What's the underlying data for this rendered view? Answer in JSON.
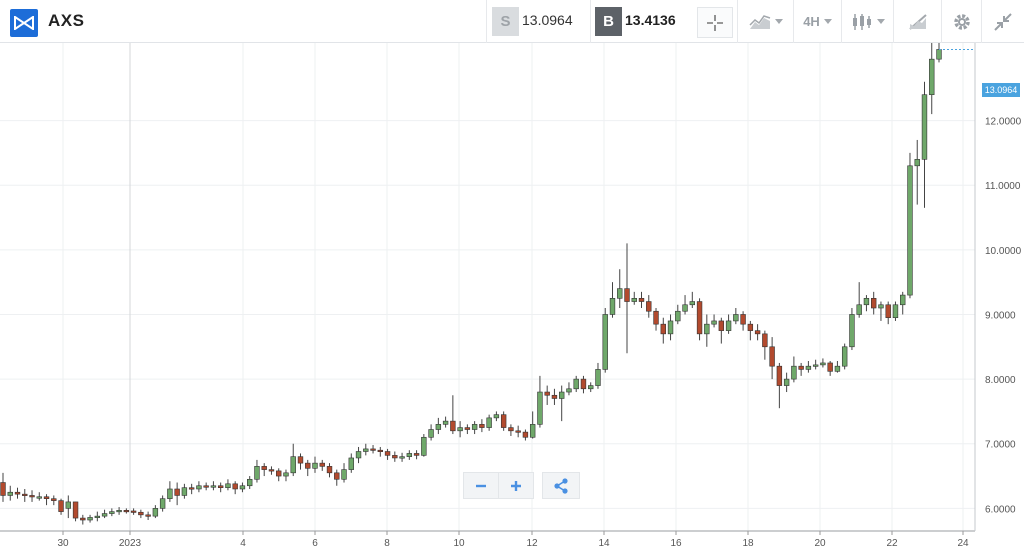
{
  "header": {
    "symbol": "AXS",
    "sell_label": "S",
    "sell_price": "13.0964",
    "buy_label": "B",
    "buy_price": "13.4136",
    "timeframe": "4H"
  },
  "icons": {
    "logo": "bowtie-logo-icon",
    "crosshair": "crosshair-icon",
    "chart_style": "mountain-chart-icon",
    "candles": "candlestick-icon",
    "draw": "drawing-tools-icon",
    "settings": "gear-icon",
    "collapse": "collapse-icon",
    "zoom_out": "minus-icon",
    "zoom_in": "plus-icon",
    "share": "share-icon"
  },
  "colors": {
    "up": "#6fa86a",
    "down": "#b24a2e",
    "price_tag": "#4aa3df",
    "logo": "#1d6dd8"
  },
  "chart_data": {
    "type": "candlestick",
    "current_price_label": "13.0964",
    "ylim": [
      5.65,
      13.2
    ],
    "y_ticks": [
      "6.0000",
      "7.0000",
      "8.0000",
      "9.0000",
      "10.0000",
      "11.0000",
      "12.0000"
    ],
    "x_ticks": [
      "30",
      "2023",
      "4",
      "6",
      "8",
      "10",
      "12",
      "14",
      "16",
      "18",
      "20",
      "22",
      "24"
    ],
    "candles": [
      [
        6.4,
        6.2,
        6.55,
        6.1
      ],
      [
        6.2,
        6.25,
        6.35,
        6.12
      ],
      [
        6.25,
        6.22,
        6.32,
        6.15
      ],
      [
        6.22,
        6.2,
        6.3,
        6.1
      ],
      [
        6.2,
        6.18,
        6.28,
        6.1
      ],
      [
        6.18,
        6.18,
        6.25,
        6.12
      ],
      [
        6.18,
        6.15,
        6.22,
        6.05
      ],
      [
        6.15,
        6.12,
        6.2,
        6.05
      ],
      [
        6.12,
        5.95,
        6.15,
        5.9
      ],
      [
        6.0,
        6.1,
        6.2,
        5.85
      ],
      [
        6.1,
        5.85,
        6.1,
        5.8
      ],
      [
        5.85,
        5.82,
        5.9,
        5.75
      ],
      [
        5.82,
        5.86,
        5.9,
        5.78
      ],
      [
        5.86,
        5.88,
        5.95,
        5.8
      ],
      [
        5.88,
        5.92,
        5.98,
        5.85
      ],
      [
        5.92,
        5.95,
        6.0,
        5.88
      ],
      [
        5.95,
        5.97,
        6.02,
        5.9
      ],
      [
        5.97,
        5.96,
        6.0,
        5.92
      ],
      [
        5.96,
        5.94,
        6.0,
        5.9
      ],
      [
        5.94,
        5.9,
        5.98,
        5.85
      ],
      [
        5.9,
        5.88,
        5.95,
        5.82
      ],
      [
        5.88,
        6.0,
        6.05,
        5.85
      ],
      [
        6.0,
        6.15,
        6.2,
        5.95
      ],
      [
        6.15,
        6.3,
        6.42,
        6.1
      ],
      [
        6.3,
        6.2,
        6.4,
        6.05
      ],
      [
        6.2,
        6.32,
        6.38,
        6.15
      ],
      [
        6.32,
        6.3,
        6.38,
        6.22
      ],
      [
        6.3,
        6.35,
        6.42,
        6.25
      ],
      [
        6.35,
        6.33,
        6.4,
        6.28
      ],
      [
        6.33,
        6.35,
        6.42,
        6.28
      ],
      [
        6.35,
        6.32,
        6.4,
        6.25
      ],
      [
        6.32,
        6.38,
        6.45,
        6.28
      ],
      [
        6.38,
        6.3,
        6.42,
        6.22
      ],
      [
        6.3,
        6.35,
        6.4,
        6.25
      ],
      [
        6.35,
        6.45,
        6.5,
        6.3
      ],
      [
        6.45,
        6.65,
        6.75,
        6.4
      ],
      [
        6.65,
        6.6,
        6.7,
        6.5
      ],
      [
        6.6,
        6.58,
        6.65,
        6.52
      ],
      [
        6.58,
        6.5,
        6.62,
        6.42
      ],
      [
        6.5,
        6.55,
        6.6,
        6.42
      ],
      [
        6.55,
        6.8,
        7.0,
        6.5
      ],
      [
        6.8,
        6.7,
        6.85,
        6.6
      ],
      [
        6.7,
        6.62,
        6.75,
        6.5
      ],
      [
        6.62,
        6.7,
        6.8,
        6.55
      ],
      [
        6.7,
        6.65,
        6.75,
        6.58
      ],
      [
        6.65,
        6.55,
        6.7,
        6.48
      ],
      [
        6.55,
        6.45,
        6.6,
        6.35
      ],
      [
        6.45,
        6.6,
        6.7,
        6.4
      ],
      [
        6.6,
        6.78,
        6.85,
        6.55
      ],
      [
        6.78,
        6.88,
        6.95,
        6.7
      ],
      [
        6.88,
        6.92,
        7.0,
        6.82
      ],
      [
        6.92,
        6.9,
        6.98,
        6.85
      ],
      [
        6.9,
        6.88,
        6.95,
        6.8
      ],
      [
        6.88,
        6.82,
        6.92,
        6.75
      ],
      [
        6.82,
        6.78,
        6.88,
        6.72
      ],
      [
        6.78,
        6.8,
        6.86,
        6.72
      ],
      [
        6.8,
        6.85,
        6.9,
        6.75
      ],
      [
        6.85,
        6.82,
        6.9,
        6.76
      ],
      [
        6.82,
        7.1,
        7.15,
        6.8
      ],
      [
        7.1,
        7.22,
        7.3,
        7.05
      ],
      [
        7.22,
        7.3,
        7.4,
        7.15
      ],
      [
        7.3,
        7.35,
        7.42,
        7.25
      ],
      [
        7.35,
        7.2,
        7.75,
        7.15
      ],
      [
        7.2,
        7.25,
        7.35,
        7.1
      ],
      [
        7.25,
        7.22,
        7.3,
        7.15
      ],
      [
        7.22,
        7.3,
        7.35,
        7.15
      ],
      [
        7.3,
        7.25,
        7.38,
        7.18
      ],
      [
        7.25,
        7.4,
        7.45,
        7.2
      ],
      [
        7.4,
        7.45,
        7.5,
        7.35
      ],
      [
        7.45,
        7.25,
        7.5,
        7.2
      ],
      [
        7.25,
        7.2,
        7.3,
        7.12
      ],
      [
        7.2,
        7.18,
        7.28,
        7.1
      ],
      [
        7.18,
        7.1,
        7.22,
        7.05
      ],
      [
        7.1,
        7.3,
        7.5,
        7.08
      ],
      [
        7.3,
        7.8,
        8.05,
        7.25
      ],
      [
        7.8,
        7.75,
        7.9,
        7.6
      ],
      [
        7.75,
        7.7,
        7.85,
        7.6
      ],
      [
        7.7,
        7.8,
        7.9,
        7.35
      ],
      [
        7.8,
        7.85,
        7.95,
        7.75
      ],
      [
        7.85,
        8.0,
        8.05,
        7.8
      ],
      [
        8.0,
        7.85,
        8.05,
        7.78
      ],
      [
        7.85,
        7.9,
        7.95,
        7.8
      ],
      [
        7.9,
        8.15,
        8.25,
        7.85
      ],
      [
        8.15,
        9.0,
        9.1,
        8.1
      ],
      [
        9.0,
        9.25,
        9.5,
        8.95
      ],
      [
        9.25,
        9.4,
        9.7,
        9.1
      ],
      [
        9.4,
        9.2,
        10.1,
        8.4
      ],
      [
        9.2,
        9.25,
        9.35,
        9.15
      ],
      [
        9.25,
        9.2,
        9.35,
        9.1
      ],
      [
        9.2,
        9.05,
        9.3,
        8.95
      ],
      [
        9.05,
        8.85,
        9.1,
        8.75
      ],
      [
        8.85,
        8.7,
        8.95,
        8.55
      ],
      [
        8.7,
        8.9,
        9.0,
        8.6
      ],
      [
        8.9,
        9.05,
        9.15,
        8.85
      ],
      [
        9.05,
        9.15,
        9.3,
        9.0
      ],
      [
        9.15,
        9.2,
        9.35,
        9.1
      ],
      [
        9.2,
        8.7,
        9.25,
        8.6
      ],
      [
        8.7,
        8.85,
        9.0,
        8.5
      ],
      [
        8.85,
        8.9,
        9.0,
        8.8
      ],
      [
        8.9,
        8.75,
        8.95,
        8.55
      ],
      [
        8.75,
        8.9,
        9.0,
        8.7
      ],
      [
        8.9,
        9.0,
        9.1,
        8.85
      ],
      [
        9.0,
        8.85,
        9.05,
        8.75
      ],
      [
        8.85,
        8.75,
        8.9,
        8.6
      ],
      [
        8.75,
        8.7,
        8.85,
        8.6
      ],
      [
        8.7,
        8.5,
        8.75,
        8.3
      ],
      [
        8.5,
        8.2,
        8.65,
        8.0
      ],
      [
        8.2,
        7.9,
        8.25,
        7.55
      ],
      [
        7.9,
        8.0,
        8.1,
        7.8
      ],
      [
        8.0,
        8.2,
        8.35,
        7.95
      ],
      [
        8.2,
        8.15,
        8.25,
        8.05
      ],
      [
        8.15,
        8.2,
        8.28,
        8.1
      ],
      [
        8.2,
        8.22,
        8.3,
        8.15
      ],
      [
        8.22,
        8.25,
        8.32,
        8.18
      ],
      [
        8.25,
        8.12,
        8.28,
        8.05
      ],
      [
        8.12,
        8.2,
        8.28,
        8.1
      ],
      [
        8.2,
        8.5,
        8.55,
        8.15
      ],
      [
        8.5,
        9.0,
        9.1,
        8.45
      ],
      [
        9.0,
        9.15,
        9.5,
        8.95
      ],
      [
        9.15,
        9.25,
        9.3,
        9.05
      ],
      [
        9.25,
        9.1,
        9.35,
        9.0
      ],
      [
        9.1,
        9.15,
        9.2,
        8.9
      ],
      [
        9.15,
        8.95,
        9.2,
        8.85
      ],
      [
        8.95,
        9.15,
        9.2,
        8.9
      ],
      [
        9.15,
        9.3,
        9.35,
        9.0
      ],
      [
        9.3,
        11.3,
        11.5,
        9.25
      ],
      [
        11.3,
        11.4,
        11.7,
        10.7
      ],
      [
        11.4,
        12.4,
        12.6,
        10.65
      ],
      [
        12.4,
        12.95,
        13.75,
        12.1
      ],
      [
        12.95,
        13.1,
        13.3,
        12.9
      ]
    ]
  }
}
